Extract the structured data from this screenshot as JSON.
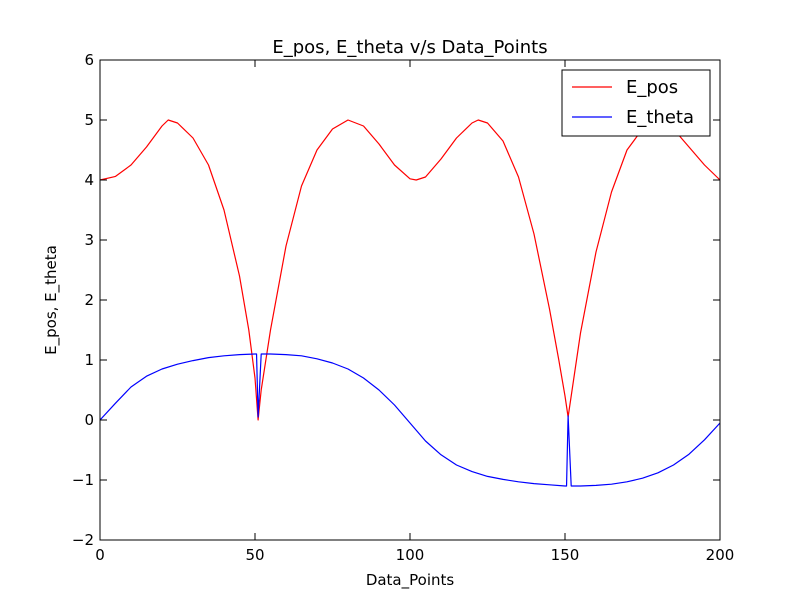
{
  "chart_data": {
    "type": "line",
    "title": "E_pos, E_theta v/s Data_Points",
    "xlabel": "Data_Points",
    "ylabel": "E_pos, E_theta",
    "xlim": [
      0,
      200
    ],
    "ylim": [
      -2,
      6
    ],
    "xticks": [
      0,
      50,
      100,
      150,
      200
    ],
    "xtick_labels": [
      "0",
      "50",
      "100",
      "150",
      "200"
    ],
    "yticks": [
      -2,
      -1,
      0,
      1,
      2,
      3,
      4,
      5,
      6
    ],
    "ytick_labels": [
      "−2",
      "−1",
      "0",
      "1",
      "2",
      "3",
      "4",
      "5",
      "6"
    ],
    "grid": false,
    "legend": "top-right",
    "series": [
      {
        "name": "E_pos",
        "color": "#ff0000",
        "points": [
          [
            0,
            4.0
          ],
          [
            5,
            4.06
          ],
          [
            10,
            4.25
          ],
          [
            15,
            4.55
          ],
          [
            20,
            4.9
          ],
          [
            22,
            5.0
          ],
          [
            25,
            4.95
          ],
          [
            30,
            4.7
          ],
          [
            35,
            4.25
          ],
          [
            40,
            3.5
          ],
          [
            45,
            2.4
          ],
          [
            48,
            1.5
          ],
          [
            50,
            0.7
          ],
          [
            51,
            0.0
          ],
          [
            52,
            0.5
          ],
          [
            55,
            1.5
          ],
          [
            60,
            2.9
          ],
          [
            65,
            3.9
          ],
          [
            70,
            4.5
          ],
          [
            75,
            4.85
          ],
          [
            80,
            5.0
          ],
          [
            85,
            4.9
          ],
          [
            90,
            4.6
          ],
          [
            95,
            4.25
          ],
          [
            100,
            4.02
          ],
          [
            102,
            4.0
          ],
          [
            105,
            4.05
          ],
          [
            110,
            4.35
          ],
          [
            115,
            4.7
          ],
          [
            120,
            4.95
          ],
          [
            122,
            5.0
          ],
          [
            125,
            4.95
          ],
          [
            130,
            4.65
          ],
          [
            135,
            4.05
          ],
          [
            140,
            3.1
          ],
          [
            145,
            1.85
          ],
          [
            148,
            1.0
          ],
          [
            150,
            0.4
          ],
          [
            151,
            0.05
          ],
          [
            152,
            0.4
          ],
          [
            155,
            1.45
          ],
          [
            160,
            2.8
          ],
          [
            165,
            3.8
          ],
          [
            170,
            4.5
          ],
          [
            175,
            4.85
          ],
          [
            180,
            5.0
          ],
          [
            185,
            4.85
          ],
          [
            190,
            4.55
          ],
          [
            195,
            4.25
          ],
          [
            200,
            4.0
          ]
        ]
      },
      {
        "name": "E_theta",
        "color": "#0000ff",
        "points": [
          [
            0,
            0.0
          ],
          [
            5,
            0.28
          ],
          [
            10,
            0.55
          ],
          [
            15,
            0.73
          ],
          [
            20,
            0.85
          ],
          [
            25,
            0.93
          ],
          [
            30,
            0.99
          ],
          [
            35,
            1.04
          ],
          [
            40,
            1.07
          ],
          [
            45,
            1.09
          ],
          [
            50,
            1.1
          ],
          [
            50.5,
            1.1
          ],
          [
            51,
            0.05
          ],
          [
            52,
            1.1
          ],
          [
            55,
            1.1
          ],
          [
            60,
            1.09
          ],
          [
            65,
            1.07
          ],
          [
            70,
            1.02
          ],
          [
            75,
            0.95
          ],
          [
            80,
            0.85
          ],
          [
            85,
            0.7
          ],
          [
            90,
            0.5
          ],
          [
            95,
            0.25
          ],
          [
            100,
            -0.05
          ],
          [
            105,
            -0.35
          ],
          [
            110,
            -0.58
          ],
          [
            115,
            -0.75
          ],
          [
            120,
            -0.86
          ],
          [
            125,
            -0.94
          ],
          [
            130,
            -0.99
          ],
          [
            135,
            -1.03
          ],
          [
            140,
            -1.06
          ],
          [
            145,
            -1.08
          ],
          [
            150,
            -1.1
          ],
          [
            150.5,
            -1.1
          ],
          [
            151,
            0.07
          ],
          [
            152,
            -1.1
          ],
          [
            155,
            -1.1
          ],
          [
            160,
            -1.09
          ],
          [
            165,
            -1.07
          ],
          [
            170,
            -1.03
          ],
          [
            175,
            -0.97
          ],
          [
            180,
            -0.88
          ],
          [
            185,
            -0.75
          ],
          [
            190,
            -0.57
          ],
          [
            195,
            -0.33
          ],
          [
            200,
            -0.05
          ]
        ]
      }
    ]
  }
}
